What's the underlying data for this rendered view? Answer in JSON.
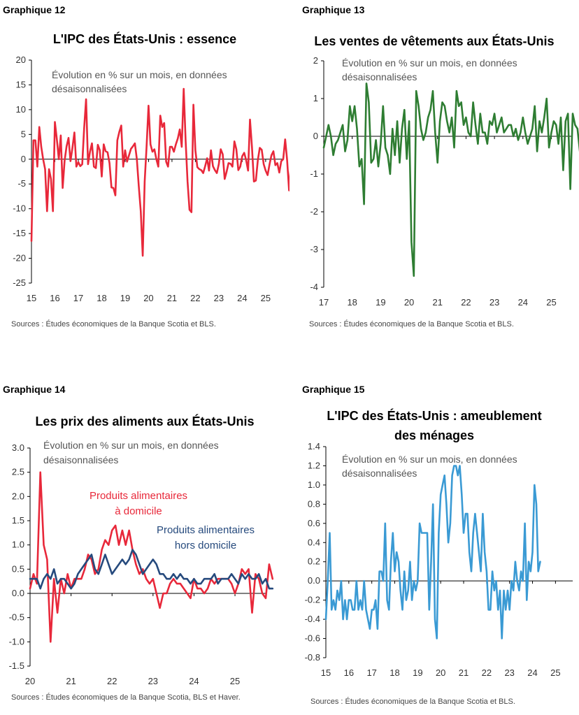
{
  "panels": [
    {
      "label": "Graphique 12",
      "title": "L'IPC des États-Unis : essence",
      "note": [
        "Évolution en % sur un mois, en données",
        "désaisonnalisées"
      ],
      "source": "Sources : Études économiques de la Banque Scotia et BLS."
    },
    {
      "label": "Graphique 13",
      "title": "Les ventes de vêtements aux États-Unis",
      "note": [
        "Évolution en % sur un mois, en données",
        "désaisonnalisées"
      ],
      "source": "Sources : Études économiques de la Banque Scotia et BLS."
    },
    {
      "label": "Graphique 14",
      "title": "Les prix des aliments aux États-Unis",
      "note": [
        "Évolution en % sur un mois, en données",
        "désaisonnalisées"
      ],
      "source": "Sources : Études économiques de la Banque Scotia, BLS et Haver."
    },
    {
      "label": "Graphique 15",
      "title": "L'IPC des États-Unis : ameublement des ménages",
      "note": [
        "Évolution en % sur un mois, en données",
        "désaisonnalisées"
      ],
      "source": "Sources : Études économiques de la Banque Scotia et BLS."
    }
  ],
  "colors": {
    "red": "#e8283a",
    "green": "#2e7d32",
    "navy": "#264a7d",
    "blue": "#3a9ad4"
  },
  "chart_data": [
    {
      "type": "line",
      "title": "L'IPC des États-Unis : essence",
      "x_ticks": [
        "15",
        "16",
        "17",
        "18",
        "19",
        "20",
        "21",
        "22",
        "23",
        "24",
        "25"
      ],
      "x_range": [
        2015.0,
        2025.75
      ],
      "ylim": [
        -25,
        20
      ],
      "y_ticks": [
        20,
        15,
        10,
        5,
        0,
        -5,
        -10,
        -15,
        -20,
        -25
      ],
      "y_tick_labels": [
        "20",
        "15",
        "10",
        "5",
        "0",
        "-5",
        "-10",
        "-15",
        "-20",
        "-25"
      ],
      "series": [
        {
          "color": "#e8283a",
          "x_start": 2015.0,
          "x_step": 0.08333,
          "values": [
            -16.5,
            3.8,
            3.8,
            -1.5,
            6.5,
            2.5,
            0,
            -2,
            -10.5,
            -2,
            -4,
            -10.5,
            7.5,
            4,
            0,
            4.8,
            -5.8,
            -0.3,
            2.6,
            4.3,
            -0.4,
            2.3,
            5.4,
            -1.5,
            -0.6,
            -1.4,
            -1.0,
            6.2,
            12.1,
            -1,
            1.5,
            3.2,
            -1.5,
            -1.8,
            2.9,
            1.8,
            -3.5,
            3,
            1.6,
            1.4,
            -0.8,
            -5.7,
            -5.8,
            -7.3,
            3.8,
            5.5,
            6.8,
            -1.5,
            1.8,
            -0.5,
            0.8,
            2.1,
            2.6,
            3.2,
            0,
            -5.5,
            -10.5,
            -19.5,
            -4.5,
            2.5,
            10.8,
            3.0,
            1.5,
            2.0,
            0,
            -1.5,
            8.8,
            6.5,
            7.3,
            -0.5,
            -1.5,
            2.5,
            2.5,
            1.5,
            3,
            4.2,
            6.0,
            2.5,
            14.2,
            3.6,
            -4.5,
            -10.2,
            -10.7,
            11,
            1.8,
            -1.6,
            -2.0,
            -2.2,
            -2.8,
            -1.4,
            0.2,
            -2.3,
            1.8,
            -1.4,
            -2.2,
            -2.8,
            -1.0,
            2.0,
            1.0,
            -4.0,
            -2.5,
            -0.8,
            -0.9,
            -1.5,
            3.6,
            2.0,
            -2.2,
            -1.5,
            0.6,
            1.3,
            -0.2,
            -2.3,
            8,
            2.5,
            -4.5,
            -4.3,
            -0.2,
            2.3,
            1.9,
            -1.0,
            -2.3,
            -3.2,
            -1.0,
            0.8,
            1.6,
            -1.2,
            -0.8,
            -2.7,
            -0.4,
            0,
            4,
            -0.2,
            -6.3,
            -0.5,
            0.6,
            -2.3,
            -2.2,
            2.5,
            4.3
          ]
        }
      ]
    },
    {
      "type": "line",
      "title": "Les ventes de vêtements aux États-Unis",
      "x_ticks": [
        "17",
        "18",
        "19",
        "20",
        "21",
        "22",
        "23",
        "24",
        "25"
      ],
      "x_range": [
        2017.0,
        2025.75
      ],
      "ylim": [
        -4,
        2
      ],
      "y_ticks": [
        2,
        1,
        0,
        -1,
        -2,
        -3,
        -4
      ],
      "y_tick_labels": [
        "2",
        "1",
        "0",
        "-1",
        "-2",
        "-3",
        "-4"
      ],
      "series": [
        {
          "color": "#2e7d32",
          "x_start": 2017.0,
          "x_step": 0.08333,
          "values": [
            -0.3,
            0,
            0.3,
            0,
            -0.5,
            -0.2,
            -0.1,
            0.1,
            0.3,
            -0.4,
            -0.1,
            0.8,
            0.4,
            0.8,
            0.2,
            -0.8,
            -0.6,
            -1.8,
            1.4,
            0.9,
            -0.7,
            -0.6,
            -0.1,
            -0.8,
            -0.2,
            0.8,
            -0.3,
            -0.5,
            -1,
            0.2,
            -0.5,
            0.4,
            -0.7,
            0.2,
            0.7,
            -0.6,
            0.4,
            -2.8,
            -3.7,
            1.2,
            0.8,
            0.2,
            -0.1,
            0.1,
            0.5,
            0.7,
            1.2,
            0.1,
            -0.7,
            0.4,
            0.9,
            0.8,
            0.4,
            0.1,
            0.5,
            -0.3,
            1.2,
            0.8,
            0.9,
            0.3,
            0.5,
            0.1,
            0,
            0.9,
            0.3,
            -0.2,
            0.6,
            0.1,
            0.1,
            -0.2,
            0.4,
            0.3,
            0.6,
            0.1,
            0.3,
            0.5,
            0.1,
            0.2,
            0.3,
            0.3,
            0,
            0.2,
            -0.1,
            0.1,
            0.5,
            0.1,
            -0.2,
            0,
            0.2,
            0.8,
            -0.4,
            0.4,
            0.1,
            0.5,
            1.0,
            -0.3,
            0.1,
            0.4,
            0.3,
            -0.2,
            0.5,
            -0.9,
            0.4,
            0.6,
            -1.4,
            0.6,
            0.3,
            0.2,
            -0.4,
            0.4,
            0.5,
            0.2,
            0.6,
            0.7
          ]
        }
      ]
    },
    {
      "type": "line",
      "title": "Les prix des aliments aux États-Unis",
      "x_ticks": [
        "20",
        "21",
        "22",
        "23",
        "24",
        "25"
      ],
      "x_range": [
        2020.0,
        2025.75
      ],
      "ylim": [
        -1.5,
        3.0
      ],
      "y_ticks": [
        3.0,
        2.5,
        2.0,
        1.5,
        1.0,
        0.5,
        0.0,
        -0.5,
        -1.0,
        -1.5
      ],
      "y_tick_labels": [
        "3.0",
        "2.5",
        "2.0",
        "1.5",
        "1.0",
        "0.5",
        "0.0",
        "-0.5",
        "-1.0",
        "-1.5"
      ],
      "series": [
        {
          "name": "Produits alimentaires à domicile",
          "color": "#e8283a",
          "x_start": 2020.0,
          "x_step": 0.08333,
          "values": [
            0.1,
            0.4,
            0.2,
            2.5,
            1,
            0.7,
            -1,
            0.3,
            -0.4,
            0.3,
            0,
            0.4,
            0.1,
            0.3,
            0.3,
            0.3,
            0.5,
            0.8,
            0.7,
            0.4,
            0.5,
            0.9,
            1.1,
            1.0,
            1.3,
            1.4,
            1.0,
            1.3,
            1.0,
            1.3,
            0.9,
            0.6,
            0.4,
            0.5,
            0.3,
            0.2,
            0.3,
            0,
            -0.3,
            0,
            0,
            0.2,
            0.3,
            0.2,
            0.2,
            0.1,
            0,
            -0.1,
            0.3,
            0.1,
            0.1,
            0,
            0.1,
            0.3,
            0.2,
            0.3,
            0.3,
            0.3,
            0.3,
            0.2,
            0,
            0.2,
            0.5,
            0.4,
            0.5,
            -0.4,
            0.4,
            0.3,
            0,
            -0.1,
            0.6,
            0.3
          ]
        },
        {
          "name": "Produits alimentaires hors domicile",
          "color": "#264a7d",
          "x_start": 2020.0,
          "x_step": 0.08333,
          "values": [
            0.3,
            0.3,
            0.3,
            0.1,
            0.3,
            0.4,
            0.3,
            0.5,
            0.2,
            0.3,
            0.3,
            0.2,
            0.1,
            0.2,
            0.4,
            0.5,
            0.6,
            0.7,
            0.8,
            0.5,
            0.4,
            0.6,
            0.8,
            0.6,
            0.4,
            0.5,
            0.6,
            0.7,
            0.6,
            0.7,
            0.9,
            0.8,
            0.6,
            0.4,
            0.5,
            0.6,
            0.7,
            0.6,
            0.4,
            0.4,
            0.3,
            0.3,
            0.4,
            0.3,
            0.4,
            0.3,
            0.3,
            0.2,
            0.3,
            0.2,
            0.2,
            0.3,
            0.3,
            0.3,
            0.4,
            0.2,
            0.3,
            0.3,
            0.3,
            0.4,
            0.3,
            0.2,
            0.4,
            0.3,
            0.4,
            0.3,
            0.3,
            0.4,
            0.2,
            0.3,
            0.1,
            0.1
          ]
        }
      ]
    },
    {
      "type": "line",
      "title": "L'IPC des États-Unis : ameublement des ménages",
      "x_ticks": [
        "15",
        "16",
        "17",
        "18",
        "19",
        "20",
        "21",
        "22",
        "23",
        "24",
        "25"
      ],
      "x_range": [
        2015.0,
        2025.75
      ],
      "ylim": [
        -0.8,
        1.4
      ],
      "y_ticks": [
        1.4,
        1.2,
        1.0,
        0.8,
        0.6,
        0.4,
        0.2,
        0.0,
        -0.2,
        -0.4,
        -0.6,
        -0.8
      ],
      "y_tick_labels": [
        "1.4",
        "1.2",
        "1.0",
        "0.8",
        "0.6",
        "0.4",
        "0.2",
        "0.0",
        "-0.2",
        "-0.4",
        "-0.6",
        "-0.8"
      ],
      "series": [
        {
          "color": "#3a9ad4",
          "x_start": 2015.0,
          "x_step": 0.08333,
          "values": [
            -0.4,
            0,
            0.5,
            -0.3,
            -0.2,
            -0.3,
            -0.1,
            -0.2,
            0,
            -0.4,
            -0.2,
            -0.4,
            -0.2,
            -0.2,
            -0.3,
            -0.3,
            0,
            -0.3,
            -0.2,
            -0.3,
            0,
            -0.3,
            -0.4,
            -0.5,
            -0.3,
            -0.3,
            -0.2,
            -0.5,
            0.1,
            0.1,
            0,
            0.6,
            -0.2,
            -0.3,
            0.2,
            0.5,
            0.1,
            0.3,
            0.2,
            -0.1,
            -0.3,
            0.1,
            -0.2,
            -0.1,
            0.2,
            -0.2,
            0,
            -0.1,
            0,
            0.6,
            0.5,
            0.5,
            0.5,
            0.5,
            -0.3,
            0.2,
            0.8,
            -0.4,
            -0.6,
            0.5,
            0.9,
            1.0,
            1.1,
            0.8,
            0.4,
            0.6,
            1.1,
            1.2,
            1.2,
            1.1,
            1.2,
            0.9,
            0.5,
            0.7,
            0.7,
            0.3,
            0.1,
            0.5,
            0.7,
            0.5,
            0.3,
            0.1,
            0.7,
            0.3,
            0.1,
            -0.3,
            -0.3,
            0.1,
            -0.1,
            0,
            -0.3,
            -0.1,
            -0.6,
            -0.1,
            -0.3,
            -0.1,
            -0.3,
            0,
            -0.1,
            0.2,
            0,
            -0.1,
            0.1,
            0,
            0.6,
            -0.2,
            0.2,
            0.1,
            0.3,
            1.0,
            0.8,
            0.1,
            0.2
          ]
        }
      ]
    }
  ],
  "legend_labels": {
    "home": [
      "Produits alimentaires",
      "à domicile"
    ],
    "away": [
      "Produits alimentaires",
      "hors domicile"
    ]
  }
}
